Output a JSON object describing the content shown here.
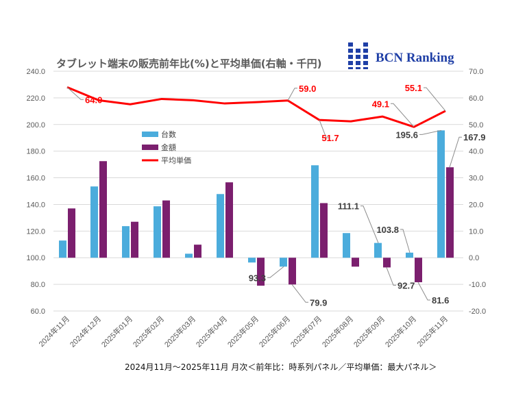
{
  "chart_data": {
    "type": "bar",
    "title": "タブレット端末の販売前年比(%)と平均単価(右軸・千円)",
    "caption": "2024月11月～2025年11月 月次＜前年比：時系列パネル／平均単価：最大パネル＞",
    "logo_text": "BCN Ranking",
    "categories": [
      "2024年11月",
      "2024年12月",
      "2025年01月",
      "2025年02月",
      "2025年03月",
      "2025年04月",
      "2025年05月",
      "2025年06月",
      "2025年07月",
      "2025年08月",
      "2025年09月",
      "2025年10月",
      "2025年11月"
    ],
    "y_left": {
      "range": [
        60,
        240
      ],
      "ticks": [
        "60.0",
        "80.0",
        "100.0",
        "120.0",
        "140.0",
        "160.0",
        "180.0",
        "200.0",
        "220.0",
        "240.0"
      ],
      "bar_baseline": 100
    },
    "y_right": {
      "range": [
        -20,
        70
      ],
      "ticks": [
        "-20.0",
        "-10.0",
        "0.0",
        "10.0",
        "20.0",
        "30.0",
        "40.0",
        "50.0",
        "60.0",
        "70.0"
      ]
    },
    "grid": true,
    "legend_placement": "top-left",
    "series": [
      {
        "name": "台数",
        "type": "bar",
        "axis": "left",
        "color": "#4bacdc",
        "values": [
          112.9,
          153.5,
          123.7,
          138.6,
          103.0,
          147.8,
          96.4,
          93.3,
          169.4,
          118.5,
          111.1,
          103.8,
          195.6
        ]
      },
      {
        "name": "金額",
        "type": "bar",
        "axis": "left",
        "color": "#7b1f6e",
        "values": [
          137.0,
          172.5,
          127.0,
          143.0,
          109.8,
          156.6,
          79.0,
          79.9,
          141.0,
          93.3,
          92.7,
          81.6,
          167.9
        ]
      },
      {
        "name": "平均単価",
        "type": "line",
        "axis": "right",
        "color": "#ff0000",
        "values": [
          64.0,
          59.1,
          57.6,
          59.6,
          59.1,
          57.9,
          58.4,
          59.0,
          51.7,
          51.2,
          53.0,
          49.1,
          55.1
        ]
      }
    ],
    "data_labels": [
      {
        "series": 2,
        "index": 0,
        "text": "64.0"
      },
      {
        "series": 2,
        "index": 7,
        "text": "59.0"
      },
      {
        "series": 2,
        "index": 8,
        "text": "51.7"
      },
      {
        "series": 2,
        "index": 11,
        "text": "49.1"
      },
      {
        "series": 2,
        "index": 12,
        "text": "55.1"
      },
      {
        "series": 0,
        "index": 7,
        "text": "93.3"
      },
      {
        "series": 1,
        "index": 7,
        "text": "79.9"
      },
      {
        "series": 0,
        "index": 10,
        "text": "111.1"
      },
      {
        "series": 1,
        "index": 10,
        "text": "92.7"
      },
      {
        "series": 0,
        "index": 11,
        "text": "103.8"
      },
      {
        "series": 1,
        "index": 11,
        "text": "81.6"
      },
      {
        "series": 0,
        "index": 12,
        "text": "195.6"
      },
      {
        "series": 1,
        "index": 12,
        "text": "167.9"
      }
    ]
  }
}
